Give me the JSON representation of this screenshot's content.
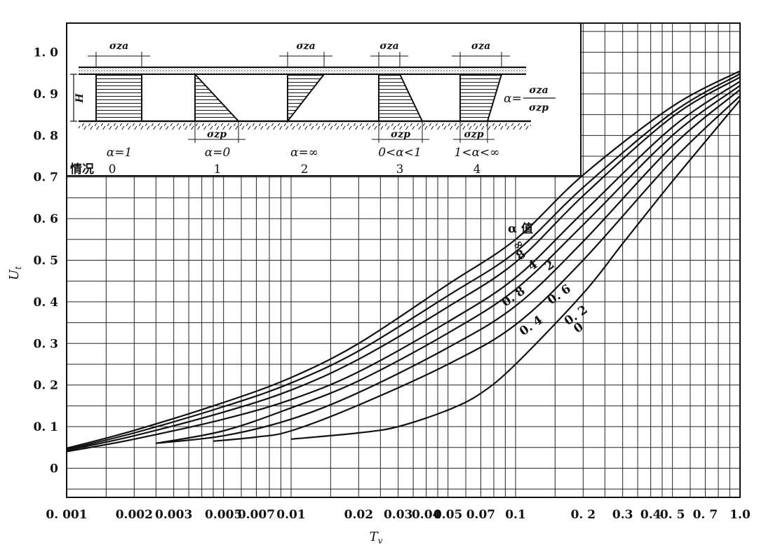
{
  "chart_data": {
    "type": "line",
    "xlabel": "T",
    "xlabel_sub": "v",
    "ylabel": "U",
    "ylabel_sub": "t",
    "x_scale": "log",
    "xlim": [
      0.001,
      1.0
    ],
    "ylim": [
      -0.07,
      1.07
    ],
    "grid": true,
    "x_ticks": [
      {
        "v": 0.001,
        "label": "0. 001"
      },
      {
        "v": 0.002,
        "label": "0.002"
      },
      {
        "v": 0.003,
        "label": "0.003"
      },
      {
        "v": 0.005,
        "label": "0.005"
      },
      {
        "v": 0.007,
        "label": "0.007"
      },
      {
        "v": 0.01,
        "label": "0.01"
      },
      {
        "v": 0.02,
        "label": "0.02"
      },
      {
        "v": 0.03,
        "label": "0.03"
      },
      {
        "v": 0.04,
        "label": "0.04"
      },
      {
        "v": 0.05,
        "label": "0.05"
      },
      {
        "v": 0.07,
        "label": "0.07"
      },
      {
        "v": 0.1,
        "label": "0.1"
      },
      {
        "v": 0.2,
        "label": "0. 2"
      },
      {
        "v": 0.3,
        "label": "0.3"
      },
      {
        "v": 0.4,
        "label": "0.4"
      },
      {
        "v": 0.5,
        "label": "0. 5"
      },
      {
        "v": 0.7,
        "label": "0. 7"
      },
      {
        "v": 1.0,
        "label": "1.0"
      }
    ],
    "y_ticks": [
      {
        "v": 0.0,
        "label": "0"
      },
      {
        "v": 0.1,
        "label": "0. 1"
      },
      {
        "v": 0.2,
        "label": "0. 2"
      },
      {
        "v": 0.3,
        "label": "0. 3"
      },
      {
        "v": 0.4,
        "label": "0. 4"
      },
      {
        "v": 0.5,
        "label": "0. 5"
      },
      {
        "v": 0.6,
        "label": "0. 6"
      },
      {
        "v": 0.7,
        "label": "0. 7"
      },
      {
        "v": 0.8,
        "label": "0. 8"
      },
      {
        "v": 0.9,
        "label": "0. 9"
      },
      {
        "v": 1.0,
        "label": "1. 0"
      }
    ],
    "legend_title": "α 值",
    "series": [
      {
        "name": "∞",
        "x": [
          0.001,
          0.002,
          0.005,
          0.01,
          0.02,
          0.05,
          0.1,
          0.2,
          0.5,
          1.0
        ],
        "y": [
          0.048,
          0.091,
          0.158,
          0.218,
          0.3,
          0.442,
          0.55,
          0.705,
          0.87,
          0.955
        ]
      },
      {
        "name": "4",
        "x": [
          0.001,
          0.002,
          0.005,
          0.01,
          0.02,
          0.05,
          0.1,
          0.2,
          0.5,
          1.0
        ],
        "y": [
          0.045,
          0.085,
          0.148,
          0.205,
          0.282,
          0.415,
          0.52,
          0.675,
          0.855,
          0.948
        ]
      },
      {
        "name": "2",
        "x": [
          0.001,
          0.002,
          0.005,
          0.01,
          0.02,
          0.05,
          0.1,
          0.2,
          0.5,
          1.0
        ],
        "y": [
          0.043,
          0.078,
          0.135,
          0.188,
          0.262,
          0.388,
          0.495,
          0.655,
          0.845,
          0.94
        ]
      },
      {
        "name": "0.8",
        "x": [
          0.001,
          0.002,
          0.005,
          0.01,
          0.02,
          0.05,
          0.1,
          0.2,
          0.5,
          1.0
        ],
        "y": [
          0.04,
          0.07,
          0.118,
          0.165,
          0.232,
          0.352,
          0.458,
          0.615,
          0.82,
          0.93
        ]
      },
      {
        "name": "0.6",
        "x": [
          0.0025,
          0.005,
          0.01,
          0.02,
          0.05,
          0.1,
          0.2,
          0.5,
          1.0
        ],
        "y": [
          0.06,
          0.09,
          0.145,
          0.21,
          0.325,
          0.43,
          0.585,
          0.8,
          0.92
        ]
      },
      {
        "name": "0.4",
        "x": [
          0.0025,
          0.005,
          0.01,
          0.02,
          0.05,
          0.1,
          0.2,
          0.5,
          1.0
        ],
        "y": [
          0.06,
          0.078,
          0.118,
          0.182,
          0.29,
          0.39,
          0.545,
          0.775,
          0.91
        ]
      },
      {
        "name": "0.2",
        "x": [
          0.0045,
          0.007,
          0.01,
          0.02,
          0.05,
          0.1,
          0.2,
          0.5,
          1.0
        ],
        "y": [
          0.065,
          0.075,
          0.09,
          0.152,
          0.25,
          0.345,
          0.5,
          0.74,
          0.895
        ]
      },
      {
        "name": "0",
        "x": [
          0.01,
          0.02,
          0.03,
          0.05,
          0.07,
          0.1,
          0.2,
          0.3,
          0.5,
          1.0
        ],
        "y": [
          0.07,
          0.085,
          0.1,
          0.14,
          0.18,
          0.25,
          0.42,
          0.54,
          0.69,
          0.885
        ]
      }
    ],
    "curve_labels": [
      {
        "text": "∞",
        "x": 0.105,
        "y": 0.53
      },
      {
        "text": "8",
        "x": 0.108,
        "y": 0.505
      },
      {
        "text": "4",
        "x": 0.122,
        "y": 0.48
      },
      {
        "text": "2",
        "x": 0.145,
        "y": 0.48
      },
      {
        "text": "0. 8",
        "x": 0.1,
        "y": 0.405
      },
      {
        "text": "0. 6",
        "x": 0.16,
        "y": 0.41
      },
      {
        "text": "0. 4",
        "x": 0.12,
        "y": 0.335
      },
      {
        "text": "0. 2",
        "x": 0.19,
        "y": 0.36
      },
      {
        "text": "0",
        "x": 0.195,
        "y": 0.33
      }
    ],
    "inset": {
      "row_label": "情况",
      "H_label": "H",
      "alpha_def": "α=",
      "sigma_za": "σza",
      "sigma_zp": "σzp",
      "cases": [
        {
          "num": "0",
          "alpha": "α=1"
        },
        {
          "num": "1",
          "alpha": "α=0"
        },
        {
          "num": "2",
          "alpha": "α=∞"
        },
        {
          "num": "3",
          "alpha": "0<α<1"
        },
        {
          "num": "4",
          "alpha": "1<α<∞"
        }
      ]
    }
  }
}
